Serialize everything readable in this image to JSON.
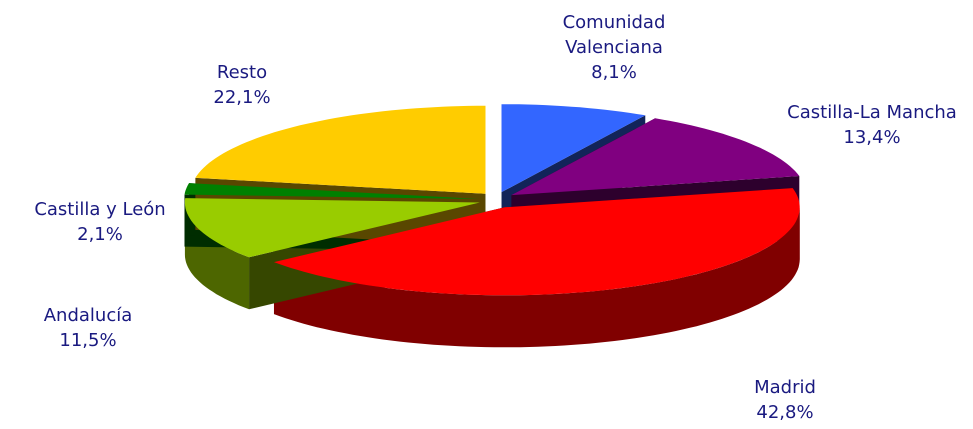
{
  "chart_data": {
    "type": "pie",
    "categories": [
      "Comunidad Valenciana",
      "Castilla-La Mancha",
      "Madrid",
      "Andalucía",
      "Castilla y León",
      "Resto"
    ],
    "values": [
      8.1,
      13.4,
      42.8,
      11.5,
      2.1,
      22.1
    ],
    "value_labels": [
      "8,1%",
      "13,4%",
      "42,8%",
      "11,5%",
      "2,1%",
      "22,1%"
    ],
    "colors": [
      "#3366ff",
      "#800080",
      "#ff0000",
      "#99cc00",
      "#008000",
      "#ffcc00"
    ]
  }
}
